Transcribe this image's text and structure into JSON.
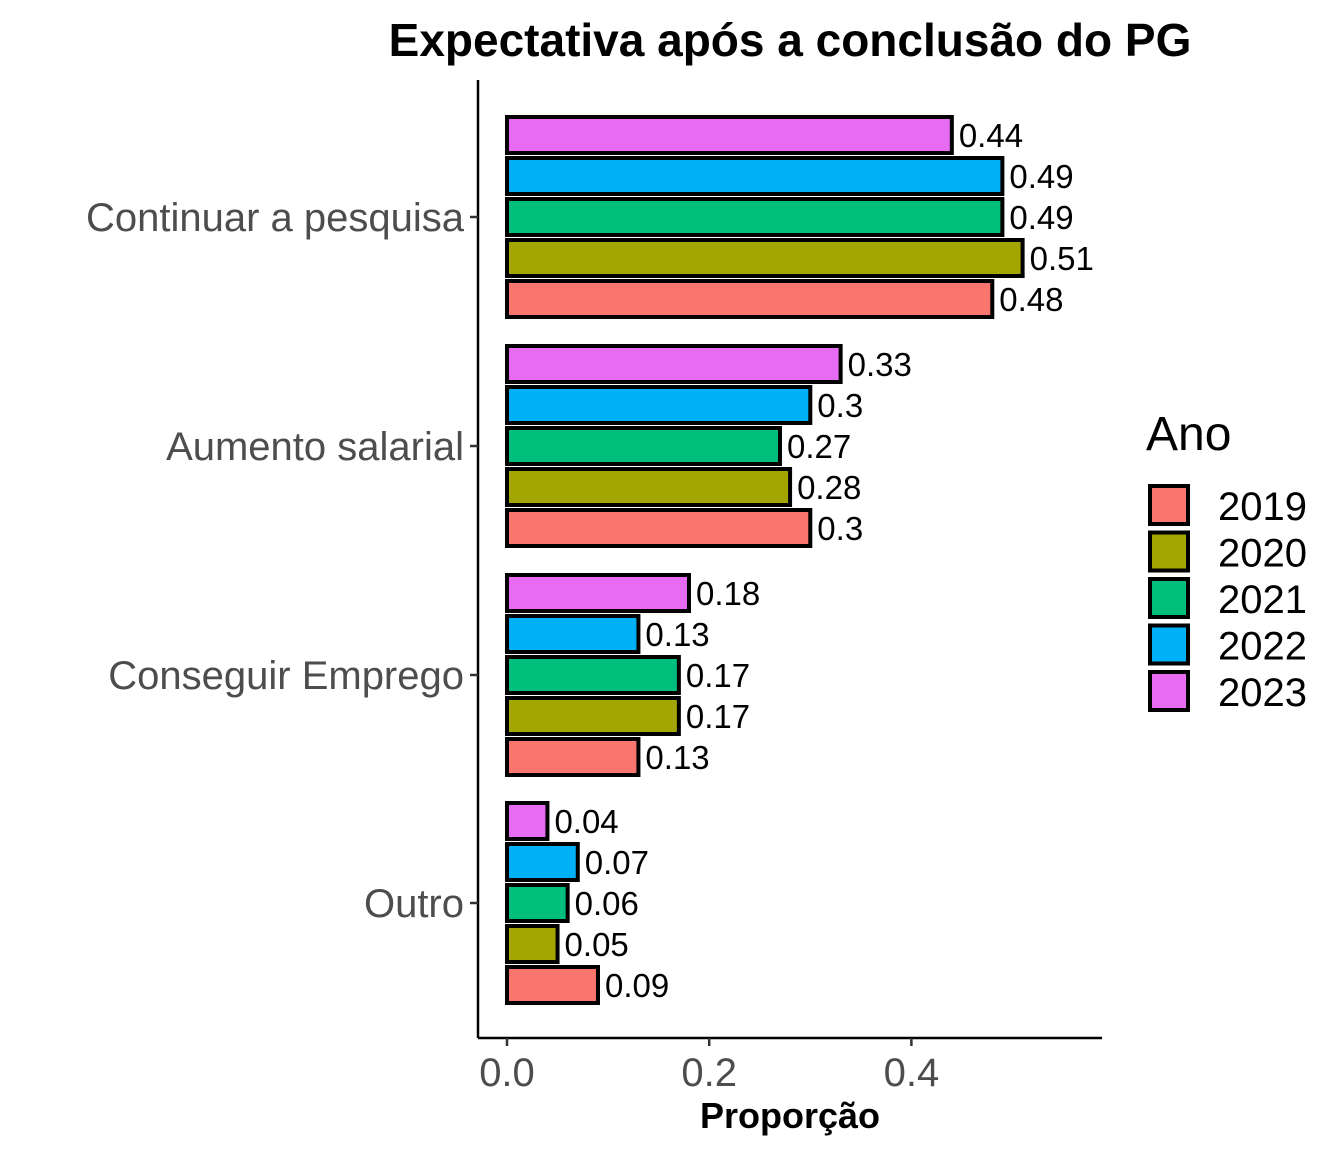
{
  "chart_data": {
    "type": "bar",
    "orientation": "horizontal",
    "title": "Expectativa após a conclusão do PG",
    "xlabel": "Proporção",
    "ylabel": "",
    "xlim": [
      0,
      0.58
    ],
    "x_ticks": [
      0.0,
      0.2,
      0.4
    ],
    "x_tick_labels": [
      "0.0",
      "0.2",
      "0.4"
    ],
    "grid": false,
    "categories": [
      "Continuar a pesquisa",
      "Aumento salarial",
      "Conseguir Emprego",
      "Outro"
    ],
    "series": [
      {
        "name": "2019",
        "color": "#F8766D",
        "values": [
          0.48,
          0.3,
          0.13,
          0.09
        ],
        "labels": [
          "0.48",
          "0.3",
          "0.13",
          "0.09"
        ]
      },
      {
        "name": "2020",
        "color": "#A3A500",
        "values": [
          0.51,
          0.28,
          0.17,
          0.05
        ],
        "labels": [
          "0.51",
          "0.28",
          "0.17",
          "0.05"
        ]
      },
      {
        "name": "2021",
        "color": "#00BF7D",
        "values": [
          0.49,
          0.27,
          0.17,
          0.06
        ],
        "labels": [
          "0.49",
          "0.27",
          "0.17",
          "0.06"
        ]
      },
      {
        "name": "2022",
        "color": "#00B0F6",
        "values": [
          0.49,
          0.3,
          0.13,
          0.07
        ],
        "labels": [
          "0.49",
          "0.3",
          "0.13",
          "0.07"
        ]
      },
      {
        "name": "2023",
        "color": "#E76BF3",
        "values": [
          0.44,
          0.33,
          0.18,
          0.04
        ],
        "labels": [
          "0.44",
          "0.33",
          "0.18",
          "0.04"
        ]
      }
    ],
    "legend": {
      "title": "Ano",
      "position": "right"
    }
  }
}
